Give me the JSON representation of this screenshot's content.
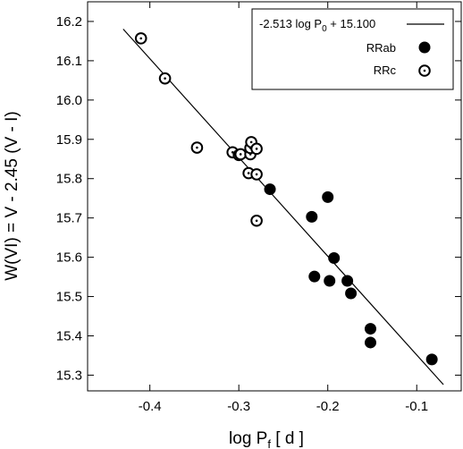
{
  "chart_data": {
    "type": "scatter",
    "xlabel": {
      "main": "log P",
      "sub": "f",
      "tail": " [ d ]"
    },
    "ylabel": "W(VI) = V - 2.45 (V - I)",
    "xlim": [
      -0.47,
      -0.05
    ],
    "ylim": [
      15.26,
      16.25
    ],
    "xticks": [
      -0.4,
      -0.3,
      -0.2,
      -0.1
    ],
    "xticklabels": [
      "-0.4",
      "-0.3",
      "-0.2",
      "-0.1"
    ],
    "yticks": [
      15.3,
      15.4,
      15.5,
      15.6,
      15.7,
      15.8,
      15.9,
      16.0,
      16.1,
      16.2
    ],
    "yticklabels": [
      "15.3",
      "15.4",
      "15.5",
      "15.6",
      "15.7",
      "15.8",
      "15.9",
      "16.0",
      "16.1",
      "16.2"
    ],
    "fit": {
      "slope": -2.513,
      "intercept": 15.1,
      "x_range": [
        -0.43,
        -0.07
      ],
      "label": {
        "pre": "-2.513 log P",
        "sub": "0",
        "post": " + 15.100"
      }
    },
    "legend_position": "top-right",
    "series": [
      {
        "name": "RRab",
        "marker": "filled-circle",
        "x": [
          -0.265,
          -0.218,
          -0.2,
          -0.215,
          -0.193,
          -0.198,
          -0.178,
          -0.174,
          -0.152,
          -0.152,
          -0.083
        ],
        "y": [
          15.773,
          15.703,
          15.753,
          15.551,
          15.598,
          15.54,
          15.54,
          15.508,
          15.418,
          15.383,
          15.34
        ]
      },
      {
        "name": "RRc",
        "marker": "dotted-circle",
        "x": [
          -0.41,
          -0.383,
          -0.347,
          -0.307,
          -0.3,
          -0.298,
          -0.289,
          -0.287,
          -0.287,
          -0.286,
          -0.28,
          -0.28,
          -0.28
        ],
        "y": [
          16.157,
          16.055,
          15.879,
          15.867,
          15.86,
          15.862,
          15.814,
          15.862,
          15.878,
          15.893,
          15.876,
          15.811,
          15.693
        ]
      }
    ]
  }
}
